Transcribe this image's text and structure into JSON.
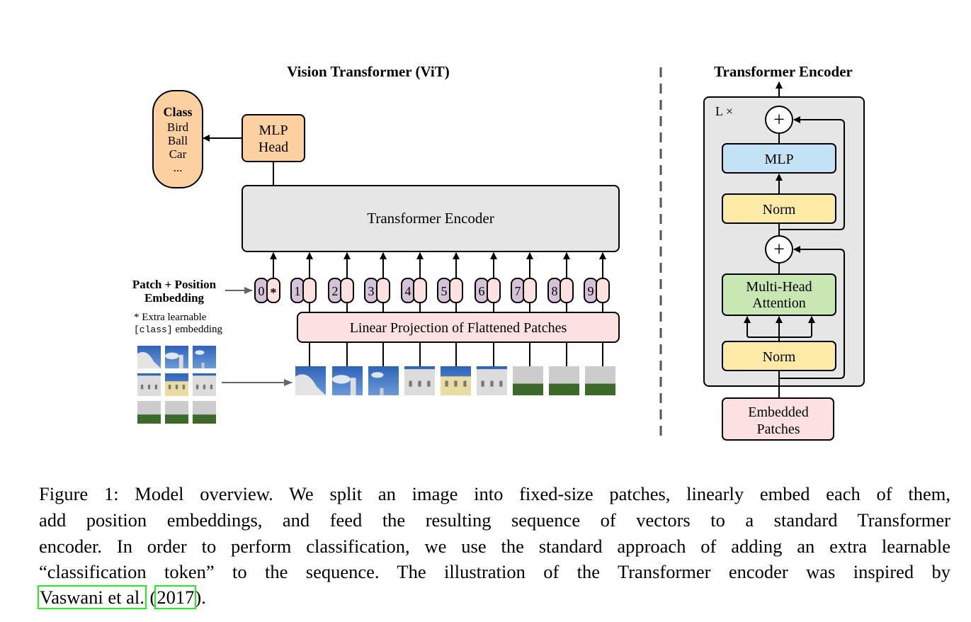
{
  "vit": {
    "title": "Vision Transformer (ViT)",
    "class_box": {
      "title": "Class",
      "items": [
        "Bird",
        "Ball",
        "Car",
        "..."
      ]
    },
    "mlp_head": [
      "MLP",
      "Head"
    ],
    "encoder_label": "Transformer Encoder",
    "patch_pos_label": [
      "Patch + Position",
      "Embedding"
    ],
    "extra_note": {
      "star": "* Extra learnable",
      "code": "[class]",
      "rest": " embedding"
    },
    "tokens": [
      "0",
      "1",
      "2",
      "3",
      "4",
      "5",
      "6",
      "7",
      "8",
      "9"
    ],
    "class_token_mark": "*",
    "projection_label": "Linear Projection of Flattened Patches"
  },
  "encoder": {
    "title": "Transformer Encoder",
    "repeat_label": "L ×",
    "plus": "+",
    "mlp": "MLP",
    "norm": "Norm",
    "mha": [
      "Multi-Head",
      "Attention"
    ],
    "input": [
      "Embedded",
      "Patches"
    ]
  },
  "colors": {
    "class": "#fdd09f",
    "token_pos": "#d5c1d8",
    "token_emb": "#fde1e1",
    "encoder_bg": "#e6e6e6",
    "mlp": "#c4e2f5",
    "norm": "#fdeaa6",
    "mha": "#c8e7b2",
    "link_box": "#22ee22"
  },
  "caption": {
    "lines": [
      "Figure 1: Model overview. We split an image into fixed-size patches, linearly embed each of them,",
      "add position embeddings, and feed the resulting sequence of vectors to a standard Transformer",
      "encoder. In order to perform classification, we use the standard approach of adding an extra learnable",
      "“classification token” to the sequence. The illustration of the Transformer encoder was inspired by"
    ],
    "cite_author": "Vaswani et al.",
    "cite_open": " (",
    "cite_year": "2017",
    "cite_close": ")."
  }
}
